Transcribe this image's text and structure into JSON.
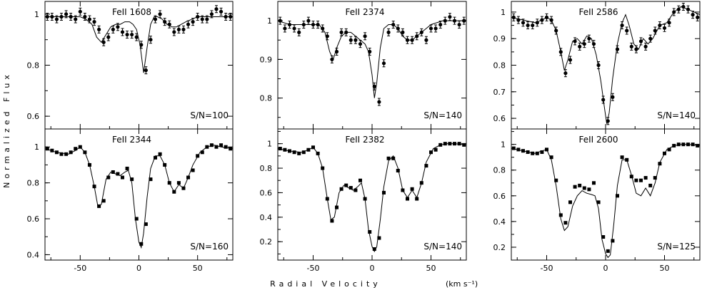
{
  "figure": {
    "ylabel": "Normalized Flux",
    "xlabel": "Radial Velocity",
    "xunit": "(km s⁻¹)"
  },
  "chart_data": [
    {
      "type": "scatter",
      "title": "FeII 1608",
      "annotation": "S/N=100",
      "xlim": [
        -80,
        80
      ],
      "ylim": [
        0.55,
        1.05
      ],
      "yticks": [
        "0.6",
        "0.8",
        "1"
      ],
      "xticks": [
        "-50",
        "0",
        "50"
      ],
      "xticklabels_shown": false,
      "errorbars": true,
      "series": [
        {
          "kind": "points",
          "x": [
            -78,
            -74,
            -70,
            -66,
            -62,
            -58,
            -54,
            -50,
            -46,
            -42,
            -38,
            -34,
            -30,
            -26,
            -22,
            -18,
            -14,
            -10,
            -6,
            -2,
            2,
            6,
            10,
            14,
            18,
            22,
            26,
            30,
            34,
            38,
            42,
            46,
            50,
            54,
            58,
            62,
            66,
            70,
            74,
            78
          ],
          "y": [
            0.99,
            0.99,
            0.98,
            0.99,
            1.0,
            0.99,
            0.98,
            1.01,
            0.99,
            0.98,
            0.97,
            0.94,
            0.89,
            0.91,
            0.94,
            0.95,
            0.93,
            0.92,
            0.92,
            0.91,
            0.88,
            0.78,
            0.9,
            0.98,
            1.0,
            0.97,
            0.96,
            0.93,
            0.94,
            0.94,
            0.96,
            0.97,
            0.99,
            0.98,
            0.98,
            1.0,
            1.02,
            1.01,
            0.99,
            0.99
          ]
        },
        {
          "kind": "line",
          "x": [
            -80,
            -70,
            -60,
            -50,
            -45,
            -40,
            -36,
            -32,
            -28,
            -24,
            -20,
            -16,
            -12,
            -8,
            -5,
            -2,
            1,
            4,
            7,
            10,
            13,
            16,
            20,
            24,
            28,
            32,
            36,
            40,
            45,
            50,
            60,
            70,
            80
          ],
          "y": [
            0.99,
            0.99,
            0.99,
            0.99,
            0.98,
            0.96,
            0.91,
            0.89,
            0.92,
            0.95,
            0.96,
            0.96,
            0.97,
            0.97,
            0.96,
            0.94,
            0.88,
            0.77,
            0.87,
            0.96,
            0.99,
            0.99,
            0.98,
            0.96,
            0.95,
            0.95,
            0.96,
            0.97,
            0.98,
            0.99,
            0.99,
            0.99,
            0.99
          ]
        }
      ]
    },
    {
      "type": "scatter",
      "title": "FeII 2374",
      "annotation": "S/N=140",
      "xlim": [
        -80,
        80
      ],
      "ylim": [
        0.72,
        1.05
      ],
      "yticks": [
        "0.8",
        "0.9",
        "1"
      ],
      "xticks": [
        "-50",
        "0",
        "50"
      ],
      "xticklabels_shown": false,
      "errorbars": true,
      "series": [
        {
          "kind": "points",
          "x": [
            -78,
            -74,
            -70,
            -66,
            -62,
            -58,
            -54,
            -50,
            -46,
            -42,
            -38,
            -34,
            -30,
            -26,
            -22,
            -18,
            -14,
            -10,
            -6,
            -2,
            2,
            6,
            10,
            14,
            18,
            22,
            26,
            30,
            34,
            38,
            42,
            46,
            50,
            54,
            58,
            62,
            66,
            70,
            74,
            78
          ],
          "y": [
            1.0,
            0.98,
            0.99,
            0.98,
            0.97,
            0.99,
            1.0,
            0.99,
            0.99,
            0.98,
            0.96,
            0.9,
            0.92,
            0.97,
            0.97,
            0.95,
            0.95,
            0.94,
            0.96,
            0.92,
            0.83,
            0.79,
            0.89,
            0.97,
            0.99,
            0.98,
            0.97,
            0.95,
            0.95,
            0.96,
            0.97,
            0.95,
            0.98,
            0.98,
            0.99,
            1.0,
            1.01,
            1.0,
            0.99,
            1.0
          ]
        },
        {
          "kind": "line",
          "x": [
            -80,
            -70,
            -60,
            -50,
            -45,
            -40,
            -36,
            -33,
            -30,
            -26,
            -22,
            -18,
            -14,
            -10,
            -6,
            -3,
            0,
            2,
            4,
            7,
            10,
            14,
            18,
            22,
            26,
            30,
            34,
            38,
            42,
            50,
            60,
            70,
            80
          ],
          "y": [
            1.0,
            0.99,
            0.99,
            0.99,
            0.99,
            0.97,
            0.92,
            0.9,
            0.93,
            0.96,
            0.97,
            0.97,
            0.96,
            0.95,
            0.94,
            0.92,
            0.86,
            0.8,
            0.84,
            0.93,
            0.98,
            0.99,
            0.99,
            0.98,
            0.96,
            0.95,
            0.95,
            0.96,
            0.97,
            0.99,
            1.0,
            1.0,
            1.0
          ]
        }
      ]
    },
    {
      "type": "scatter",
      "title": "FeII 2586",
      "annotation": "S/N=140",
      "xlim": [
        -80,
        80
      ],
      "ylim": [
        0.56,
        1.04
      ],
      "yticks": [
        "0.6",
        "0.7",
        "0.8",
        "0.9",
        "1"
      ],
      "xticks": [
        "-50",
        "0",
        "50"
      ],
      "xticklabels_shown": false,
      "errorbars": true,
      "series": [
        {
          "kind": "points",
          "x": [
            -78,
            -74,
            -70,
            -66,
            -62,
            -58,
            -54,
            -50,
            -46,
            -42,
            -38,
            -34,
            -30,
            -26,
            -22,
            -18,
            -14,
            -10,
            -6,
            -2,
            2,
            6,
            10,
            14,
            18,
            22,
            26,
            30,
            34,
            38,
            42,
            46,
            50,
            54,
            58,
            62,
            66,
            70,
            74,
            78
          ],
          "y": [
            0.98,
            0.97,
            0.96,
            0.95,
            0.95,
            0.96,
            0.97,
            0.98,
            0.97,
            0.93,
            0.85,
            0.77,
            0.82,
            0.89,
            0.87,
            0.88,
            0.9,
            0.88,
            0.8,
            0.67,
            0.59,
            0.68,
            0.86,
            0.95,
            0.93,
            0.87,
            0.86,
            0.89,
            0.87,
            0.9,
            0.93,
            0.95,
            0.94,
            0.96,
            1.0,
            1.01,
            1.02,
            1.01,
            0.99,
            0.98
          ]
        },
        {
          "kind": "line",
          "x": [
            -80,
            -70,
            -60,
            -54,
            -50,
            -46,
            -42,
            -38,
            -35,
            -32,
            -28,
            -24,
            -20,
            -16,
            -12,
            -8,
            -4,
            -1,
            1,
            3,
            6,
            10,
            14,
            17,
            20,
            24,
            28,
            32,
            36,
            40,
            46,
            52,
            58,
            64,
            70,
            80
          ],
          "y": [
            0.98,
            0.97,
            0.96,
            0.97,
            0.98,
            0.97,
            0.93,
            0.85,
            0.78,
            0.82,
            0.89,
            0.9,
            0.88,
            0.91,
            0.9,
            0.84,
            0.74,
            0.64,
            0.58,
            0.62,
            0.75,
            0.88,
            0.96,
            0.99,
            0.95,
            0.88,
            0.86,
            0.9,
            0.88,
            0.9,
            0.95,
            0.96,
            1.0,
            1.02,
            1.01,
            0.99
          ]
        }
      ]
    },
    {
      "type": "scatter",
      "title": "FeII 2344",
      "annotation": "S/N=160",
      "xlim": [
        -80,
        80
      ],
      "ylim": [
        0.37,
        1.1
      ],
      "yticks": [
        "0.4",
        "0.6",
        "0.8",
        "1"
      ],
      "xticks": [
        "-50",
        "0",
        "50"
      ],
      "xticklabels_shown": true,
      "errorbars": false,
      "series": [
        {
          "kind": "points",
          "x": [
            -78,
            -74,
            -70,
            -66,
            -62,
            -58,
            -54,
            -50,
            -46,
            -42,
            -38,
            -34,
            -30,
            -26,
            -22,
            -18,
            -14,
            -10,
            -6,
            -2,
            2,
            6,
            10,
            14,
            18,
            22,
            26,
            30,
            34,
            38,
            42,
            46,
            50,
            54,
            58,
            62,
            66,
            70,
            74,
            78
          ],
          "y": [
            0.99,
            0.98,
            0.97,
            0.96,
            0.96,
            0.97,
            0.99,
            1.0,
            0.97,
            0.9,
            0.78,
            0.67,
            0.7,
            0.83,
            0.86,
            0.85,
            0.83,
            0.88,
            0.82,
            0.6,
            0.46,
            0.57,
            0.82,
            0.94,
            0.96,
            0.9,
            0.8,
            0.75,
            0.8,
            0.77,
            0.83,
            0.87,
            0.95,
            0.97,
            1.0,
            1.01,
            1.0,
            1.01,
            1.0,
            0.99
          ]
        },
        {
          "kind": "line",
          "x": [
            -80,
            -70,
            -60,
            -54,
            -50,
            -46,
            -42,
            -38,
            -35,
            -32,
            -28,
            -24,
            -20,
            -16,
            -12,
            -9,
            -6,
            -3,
            0,
            2,
            4,
            7,
            10,
            14,
            18,
            22,
            26,
            30,
            34,
            38,
            42,
            46,
            52,
            58,
            64,
            70,
            80
          ],
          "y": [
            0.99,
            0.97,
            0.96,
            0.98,
            1.0,
            0.97,
            0.9,
            0.78,
            0.67,
            0.68,
            0.82,
            0.86,
            0.85,
            0.84,
            0.86,
            0.87,
            0.8,
            0.6,
            0.47,
            0.44,
            0.52,
            0.72,
            0.88,
            0.95,
            0.95,
            0.9,
            0.8,
            0.75,
            0.79,
            0.77,
            0.83,
            0.9,
            0.97,
            1.0,
            1.01,
            1.0,
            0.99
          ]
        }
      ]
    },
    {
      "type": "scatter",
      "title": "FeII 2382",
      "annotation": "S/N=140",
      "xlim": [
        -80,
        80
      ],
      "ylim": [
        0.05,
        1.12
      ],
      "yticks": [
        "0.2",
        "0.4",
        "0.6",
        "0.8",
        "1"
      ],
      "xticks": [
        "-50",
        "0",
        "50"
      ],
      "xticklabels_shown": true,
      "errorbars": false,
      "series": [
        {
          "kind": "points",
          "x": [
            -78,
            -74,
            -70,
            -66,
            -62,
            -58,
            -54,
            -50,
            -46,
            -42,
            -38,
            -34,
            -30,
            -26,
            -22,
            -18,
            -14,
            -10,
            -6,
            -2,
            2,
            6,
            10,
            14,
            18,
            22,
            26,
            30,
            34,
            38,
            42,
            46,
            50,
            54,
            58,
            62,
            66,
            70,
            74,
            78
          ],
          "y": [
            0.96,
            0.95,
            0.94,
            0.93,
            0.92,
            0.93,
            0.95,
            0.97,
            0.92,
            0.8,
            0.55,
            0.37,
            0.48,
            0.63,
            0.66,
            0.64,
            0.62,
            0.7,
            0.55,
            0.28,
            0.14,
            0.23,
            0.6,
            0.88,
            0.88,
            0.78,
            0.62,
            0.55,
            0.63,
            0.55,
            0.68,
            0.82,
            0.93,
            0.95,
            0.99,
            1.0,
            1.0,
            1.0,
            1.0,
            0.99
          ]
        },
        {
          "kind": "line",
          "x": [
            -80,
            -70,
            -60,
            -54,
            -50,
            -46,
            -42,
            -38,
            -35,
            -32,
            -28,
            -24,
            -20,
            -16,
            -12,
            -9,
            -6,
            -3,
            0,
            2,
            4,
            7,
            10,
            14,
            18,
            22,
            26,
            30,
            34,
            38,
            42,
            46,
            52,
            58,
            64,
            70,
            80
          ],
          "y": [
            0.96,
            0.94,
            0.93,
            0.95,
            0.97,
            0.92,
            0.8,
            0.55,
            0.38,
            0.4,
            0.6,
            0.66,
            0.64,
            0.62,
            0.65,
            0.68,
            0.55,
            0.3,
            0.16,
            0.12,
            0.16,
            0.38,
            0.65,
            0.86,
            0.9,
            0.8,
            0.62,
            0.56,
            0.62,
            0.56,
            0.68,
            0.85,
            0.96,
            0.99,
            1.0,
            1.0,
            0.99
          ]
        }
      ]
    },
    {
      "type": "scatter",
      "title": "FeII 2600",
      "annotation": "S/N=125",
      "xlim": [
        -80,
        80
      ],
      "ylim": [
        0.1,
        1.12
      ],
      "yticks": [
        "0.2",
        "0.4",
        "0.6",
        "0.8",
        "1"
      ],
      "xticks": [
        "-50",
        "0",
        "50"
      ],
      "xticklabels_shown": true,
      "errorbars": false,
      "series": [
        {
          "kind": "points",
          "x": [
            -78,
            -74,
            -70,
            -66,
            -62,
            -58,
            -54,
            -50,
            -46,
            -42,
            -38,
            -34,
            -30,
            -26,
            -22,
            -18,
            -14,
            -10,
            -6,
            -2,
            2,
            6,
            10,
            14,
            18,
            22,
            26,
            30,
            34,
            38,
            42,
            46,
            50,
            54,
            58,
            62,
            66,
            70,
            74,
            78
          ],
          "y": [
            0.97,
            0.96,
            0.95,
            0.94,
            0.93,
            0.93,
            0.94,
            0.96,
            0.9,
            0.72,
            0.45,
            0.39,
            0.55,
            0.67,
            0.68,
            0.66,
            0.65,
            0.7,
            0.55,
            0.28,
            0.17,
            0.25,
            0.6,
            0.9,
            0.88,
            0.75,
            0.72,
            0.72,
            0.74,
            0.68,
            0.74,
            0.85,
            0.93,
            0.96,
            0.99,
            1.0,
            1.0,
            1.0,
            1.0,
            0.99
          ]
        },
        {
          "kind": "line",
          "x": [
            -80,
            -70,
            -60,
            -54,
            -50,
            -46,
            -42,
            -38,
            -35,
            -32,
            -28,
            -24,
            -20,
            -16,
            -12,
            -9,
            -6,
            -3,
            0,
            2,
            4,
            7,
            10,
            14,
            18,
            22,
            26,
            30,
            34,
            38,
            42,
            46,
            52,
            58,
            64,
            70,
            80
          ],
          "y": [
            0.97,
            0.95,
            0.93,
            0.95,
            0.96,
            0.88,
            0.68,
            0.42,
            0.33,
            0.36,
            0.52,
            0.6,
            0.64,
            0.62,
            0.61,
            0.6,
            0.5,
            0.26,
            0.15,
            0.12,
            0.14,
            0.38,
            0.68,
            0.88,
            0.88,
            0.76,
            0.62,
            0.6,
            0.66,
            0.6,
            0.7,
            0.86,
            0.96,
            0.99,
            1.0,
            1.0,
            0.99
          ]
        }
      ]
    }
  ]
}
